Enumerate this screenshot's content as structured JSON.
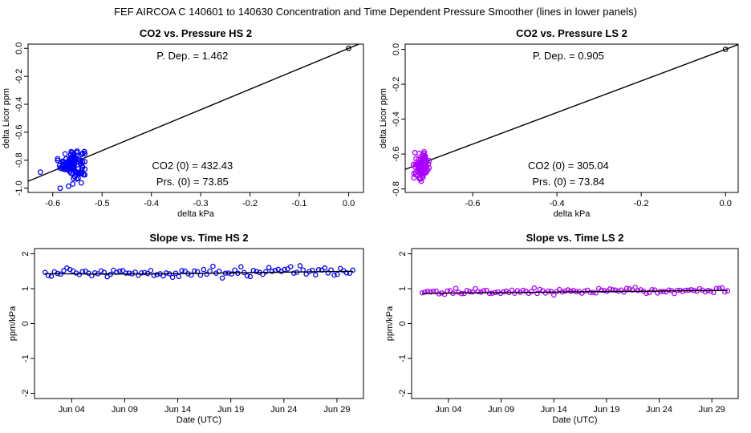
{
  "page_title": "FEF   AIRCOA C   140601 to 140630   Concentration and Time Dependent Pressure Smoother (lines in lower panels)",
  "chart_data": [
    {
      "id": "hs-pressure",
      "type": "scatter",
      "title": "CO2 vs. Pressure HS 2",
      "xlabel": "delta kPa",
      "ylabel": "delta Licor ppm",
      "xlim": [
        -0.65,
        0.03
      ],
      "ylim": [
        -1.03,
        0.03
      ],
      "xticks": [
        -0.6,
        -0.5,
        -0.4,
        -0.3,
        -0.2,
        -0.1,
        0.0
      ],
      "xtick_labels": [
        "-0.6",
        "-0.5",
        "-0.4",
        "-0.3",
        "-0.2",
        "-0.1",
        "0.0"
      ],
      "yticks": [
        -1.0,
        -0.8,
        -0.6,
        -0.4,
        -0.2,
        0.0
      ],
      "ytick_labels": [
        "-1.0",
        "-0.8",
        "-0.6",
        "-0.4",
        "-0.2",
        "0.0"
      ],
      "color": "#0000ff",
      "fit_slope": 1.462,
      "cluster": {
        "x_range": [
          -0.59,
          -0.535
        ],
        "y_range": [
          -1.0,
          -0.66
        ],
        "center": [
          -0.56,
          -0.82
        ],
        "n": 110
      },
      "outliers": [
        {
          "x": -0.625,
          "y": -0.885
        },
        {
          "x": -0.585,
          "y": -1.0
        },
        {
          "x": -0.568,
          "y": -0.985
        }
      ],
      "reference_point": {
        "x": 0.0,
        "y": 0.0
      },
      "annotations": {
        "slope_text": "P. Dep. =  1.462",
        "co2_text": "CO2 (0) =  432.43",
        "prs_text": "Prs. (0) =  73.85"
      }
    },
    {
      "id": "ls-pressure",
      "type": "scatter",
      "title": "CO2 vs. Pressure LS 2",
      "xlabel": "delta kPa",
      "ylabel": "delta Licor ppm",
      "xlim": [
        -0.76,
        0.03
      ],
      "ylim": [
        -0.82,
        0.03
      ],
      "xticks": [
        -0.6,
        -0.4,
        -0.2,
        0.0
      ],
      "xtick_labels": [
        "-0.6",
        "-0.4",
        "-0.2",
        "0.0"
      ],
      "yticks": [
        -0.8,
        -0.6,
        -0.4,
        -0.2,
        0.0
      ],
      "ytick_labels": [
        "-0.8",
        "-0.6",
        "-0.4",
        "-0.2",
        "0.0"
      ],
      "color": "#aa00ff",
      "fit_slope": 0.905,
      "cluster": {
        "x_range": [
          -0.74,
          -0.7
        ],
        "y_range": [
          -0.78,
          -0.55
        ],
        "center": [
          -0.72,
          -0.67
        ],
        "n": 100
      },
      "outliers": [],
      "reference_point": {
        "x": 0.0,
        "y": 0.0
      },
      "annotations": {
        "slope_text": "P. Dep. =  0.905",
        "co2_text": "CO2 (0) =  305.04",
        "prs_text": "Prs. (0) =  73.84"
      }
    },
    {
      "id": "hs-time",
      "type": "scatter",
      "title": "Slope vs. Time HS 2",
      "xlabel": "Date (UTC)",
      "ylabel": "ppm/kPa",
      "x_unit": "days since 2014-06-01",
      "xlim": [
        -0.5,
        30.5
      ],
      "ylim": [
        -2.15,
        2.15
      ],
      "xticks": [
        3,
        8,
        13,
        18,
        23,
        28
      ],
      "xtick_labels": [
        "Jun 04",
        "Jun 09",
        "Jun 14",
        "Jun 19",
        "Jun 24",
        "Jun 29"
      ],
      "yticks": [
        -2,
        -1,
        0,
        1,
        2
      ],
      "ytick_labels": [
        "-2",
        "-1",
        "0",
        "1",
        "2"
      ],
      "color": "#0000ff",
      "x_range": [
        0.5,
        29.5
      ],
      "smoother": [
        [
          0.5,
          1.43
        ],
        [
          5,
          1.42
        ],
        [
          10,
          1.42
        ],
        [
          15,
          1.44
        ],
        [
          20,
          1.46
        ],
        [
          25,
          1.48
        ],
        [
          29.5,
          1.5
        ]
      ],
      "points_base": 1.45,
      "points_spread": 0.12,
      "n": 100
    },
    {
      "id": "ls-time",
      "type": "scatter",
      "title": "Slope vs. Time LS 2",
      "xlabel": "Date (UTC)",
      "ylabel": "ppm/kPa",
      "x_unit": "days since 2014-06-01",
      "xlim": [
        -0.5,
        30.5
      ],
      "ylim": [
        -2.15,
        2.15
      ],
      "xticks": [
        3,
        8,
        13,
        18,
        23,
        28
      ],
      "xtick_labels": [
        "Jun 04",
        "Jun 09",
        "Jun 14",
        "Jun 19",
        "Jun 24",
        "Jun 29"
      ],
      "yticks": [
        -2,
        -1,
        0,
        1,
        2
      ],
      "ytick_labels": [
        "-2",
        "-1",
        "0",
        "1",
        "2"
      ],
      "color": "#aa00ff",
      "x_range": [
        0.5,
        29.5
      ],
      "smoother": [
        [
          0.5,
          0.86
        ],
        [
          5,
          0.88
        ],
        [
          10,
          0.89
        ],
        [
          15,
          0.91
        ],
        [
          20,
          0.92
        ],
        [
          25,
          0.94
        ],
        [
          29.5,
          0.95
        ]
      ],
      "points_base": 0.9,
      "points_spread": 0.07,
      "n": 110
    }
  ]
}
